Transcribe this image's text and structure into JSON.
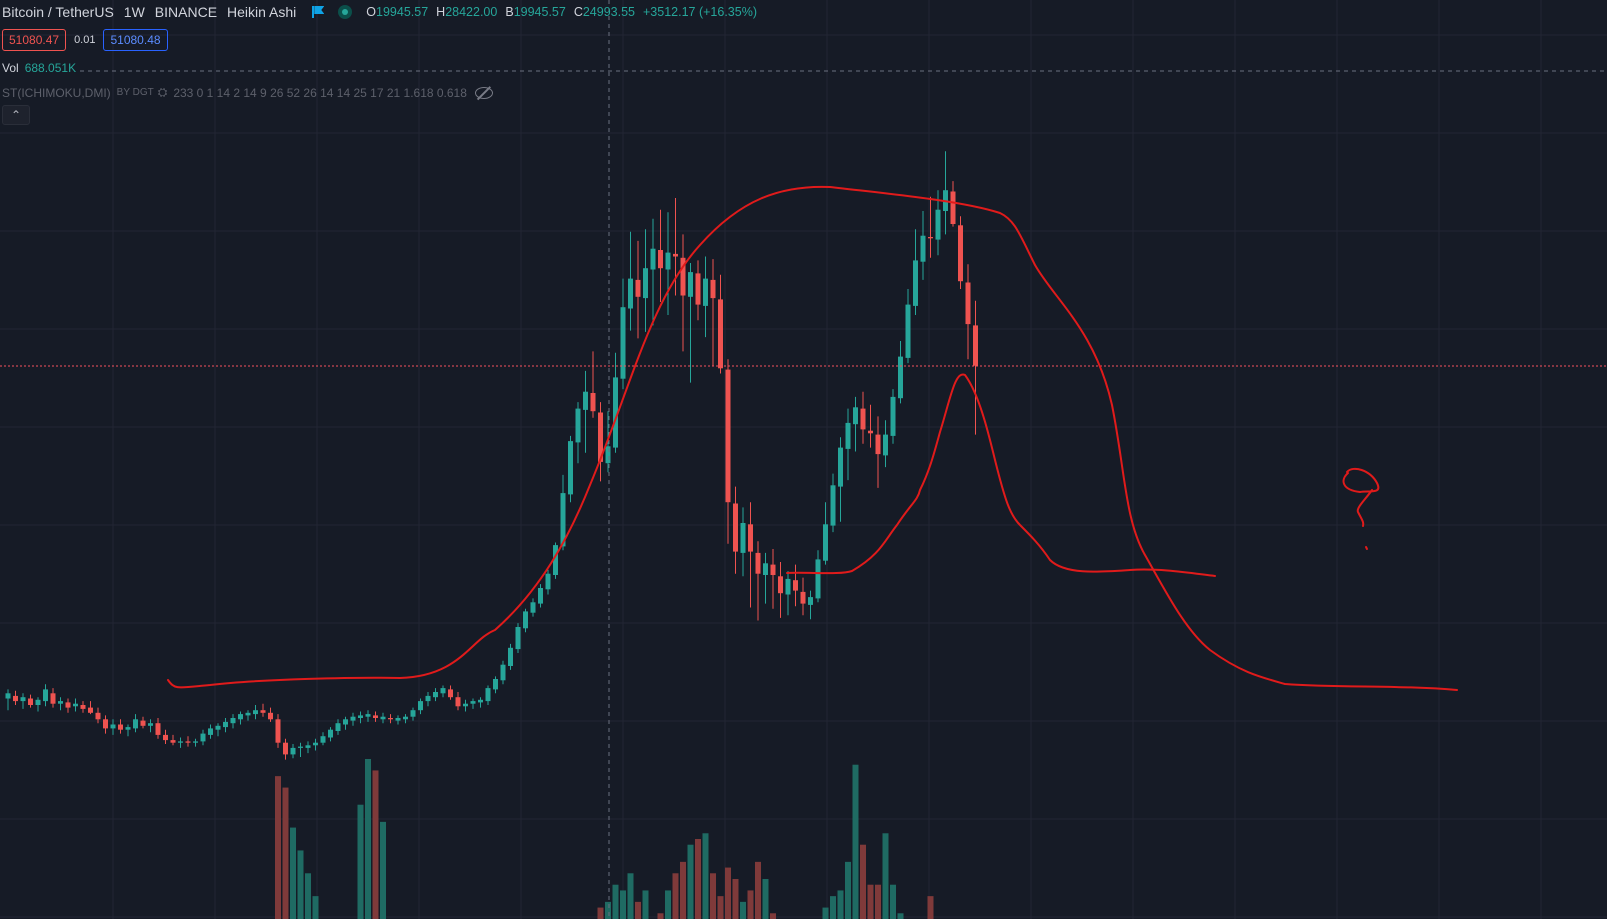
{
  "legend": {
    "symbol": "Bitcoin / TetherUS",
    "interval": "1W",
    "exchange": "BINANCE",
    "chart_style": "Heikin Ashi",
    "open_label": "O",
    "open": "19945.57",
    "high_label": "H",
    "high": "28422.00",
    "low_label": "B",
    "low": "19945.57",
    "close_label": "C",
    "close": "24993.55",
    "change": "+3512.17 (+16.35%)",
    "sell_price": "51080.47",
    "spread": "0.01",
    "buy_price": "51080.48",
    "volume_label": "Vol",
    "volume_value": "688.051K",
    "indicator_name": "ST(ICHIMOKU,DMI)",
    "indicator_by": "BY DGT",
    "indicator_params": "233 0 1 14 2 14 9 26 52 26 14 14 25 17 21 1.618 0.618",
    "collapse_icon": "chevron-up-icon"
  },
  "colors": {
    "background": "#161b26",
    "grid": "#222634",
    "up": "#26a69a",
    "down": "#ef5350",
    "up_volume": "#1f6b63",
    "down_volume": "#7f3a3a",
    "drawing": "#e01b1b",
    "price_line": "#f7525f"
  },
  "chart_data": {
    "type": "candlestick",
    "series_style": "Heikin Ashi",
    "ylim": [
      10000,
      70000
    ],
    "current_price": 51080.47,
    "candles": [
      {
        "o": 25500,
        "h": 26200,
        "l": 24600,
        "c": 25900
      },
      {
        "o": 25700,
        "h": 26100,
        "l": 25000,
        "c": 25300
      },
      {
        "o": 25300,
        "h": 25900,
        "l": 24700,
        "c": 25600
      },
      {
        "o": 25500,
        "h": 25800,
        "l": 24800,
        "c": 25000
      },
      {
        "o": 25000,
        "h": 25600,
        "l": 24500,
        "c": 25400
      },
      {
        "o": 25300,
        "h": 26600,
        "l": 24900,
        "c": 26200
      },
      {
        "o": 25900,
        "h": 26300,
        "l": 24800,
        "c": 25100
      },
      {
        "o": 25100,
        "h": 25600,
        "l": 24600,
        "c": 25300
      },
      {
        "o": 25200,
        "h": 25500,
        "l": 24400,
        "c": 24800
      },
      {
        "o": 24900,
        "h": 25500,
        "l": 24500,
        "c": 25100
      },
      {
        "o": 25000,
        "h": 25300,
        "l": 24400,
        "c": 24700
      },
      {
        "o": 24800,
        "h": 25300,
        "l": 24300,
        "c": 24400
      },
      {
        "o": 24400,
        "h": 24800,
        "l": 23600,
        "c": 23900
      },
      {
        "o": 23900,
        "h": 24200,
        "l": 22800,
        "c": 23200
      },
      {
        "o": 23200,
        "h": 23900,
        "l": 22700,
        "c": 23500
      },
      {
        "o": 23500,
        "h": 23900,
        "l": 22800,
        "c": 23100
      },
      {
        "o": 23100,
        "h": 23500,
        "l": 22600,
        "c": 23300
      },
      {
        "o": 23200,
        "h": 24300,
        "l": 22900,
        "c": 23900
      },
      {
        "o": 23800,
        "h": 24100,
        "l": 23200,
        "c": 23400
      },
      {
        "o": 23400,
        "h": 23900,
        "l": 22900,
        "c": 23600
      },
      {
        "o": 23600,
        "h": 24000,
        "l": 22400,
        "c": 22700
      },
      {
        "o": 22700,
        "h": 23100,
        "l": 22000,
        "c": 22300
      },
      {
        "o": 22300,
        "h": 22700,
        "l": 21900,
        "c": 22100
      },
      {
        "o": 22100,
        "h": 22500,
        "l": 21700,
        "c": 22200
      },
      {
        "o": 22200,
        "h": 22600,
        "l": 21800,
        "c": 22100
      },
      {
        "o": 22100,
        "h": 22400,
        "l": 21800,
        "c": 22200
      },
      {
        "o": 22200,
        "h": 23100,
        "l": 21900,
        "c": 22800
      },
      {
        "o": 22700,
        "h": 23500,
        "l": 22400,
        "c": 23200
      },
      {
        "o": 23100,
        "h": 23600,
        "l": 22600,
        "c": 23400
      },
      {
        "o": 23300,
        "h": 24000,
        "l": 22900,
        "c": 23700
      },
      {
        "o": 23600,
        "h": 24300,
        "l": 23200,
        "c": 24000
      },
      {
        "o": 23900,
        "h": 24500,
        "l": 23500,
        "c": 24300
      },
      {
        "o": 24200,
        "h": 24600,
        "l": 23800,
        "c": 24400
      },
      {
        "o": 24300,
        "h": 25000,
        "l": 23900,
        "c": 24600
      },
      {
        "o": 24600,
        "h": 25100,
        "l": 24100,
        "c": 24400
      },
      {
        "o": 24400,
        "h": 24800,
        "l": 23700,
        "c": 23900
      },
      {
        "o": 23900,
        "h": 24300,
        "l": 21700,
        "c": 22100
      },
      {
        "o": 22100,
        "h": 22400,
        "l": 20800,
        "c": 21200
      },
      {
        "o": 21200,
        "h": 22000,
        "l": 20900,
        "c": 21700
      },
      {
        "o": 21700,
        "h": 22100,
        "l": 21000,
        "c": 21800
      },
      {
        "o": 21700,
        "h": 22200,
        "l": 21300,
        "c": 21900
      },
      {
        "o": 21900,
        "h": 22400,
        "l": 21500,
        "c": 22100
      },
      {
        "o": 22100,
        "h": 22900,
        "l": 21900,
        "c": 22600
      },
      {
        "o": 22500,
        "h": 23300,
        "l": 22200,
        "c": 23100
      },
      {
        "o": 23000,
        "h": 23900,
        "l": 22700,
        "c": 23600
      },
      {
        "o": 23500,
        "h": 24100,
        "l": 23100,
        "c": 23900
      },
      {
        "o": 23800,
        "h": 24400,
        "l": 23400,
        "c": 24100
      },
      {
        "o": 24000,
        "h": 24500,
        "l": 23600,
        "c": 24200
      },
      {
        "o": 24100,
        "h": 24600,
        "l": 23700,
        "c": 24300
      },
      {
        "o": 24200,
        "h": 24500,
        "l": 23700,
        "c": 24000
      },
      {
        "o": 23900,
        "h": 24400,
        "l": 23600,
        "c": 24100
      },
      {
        "o": 24000,
        "h": 24300,
        "l": 23600,
        "c": 23900
      },
      {
        "o": 23800,
        "h": 24200,
        "l": 23500,
        "c": 24000
      },
      {
        "o": 23900,
        "h": 24300,
        "l": 23600,
        "c": 24100
      },
      {
        "o": 24100,
        "h": 24800,
        "l": 23800,
        "c": 24600
      },
      {
        "o": 24600,
        "h": 25500,
        "l": 24300,
        "c": 25300
      },
      {
        "o": 25300,
        "h": 26000,
        "l": 24900,
        "c": 25700
      },
      {
        "o": 25600,
        "h": 26300,
        "l": 25300,
        "c": 26000
      },
      {
        "o": 25900,
        "h": 26500,
        "l": 25600,
        "c": 26300
      },
      {
        "o": 26200,
        "h": 26500,
        "l": 25400,
        "c": 25600
      },
      {
        "o": 25600,
        "h": 26000,
        "l": 24600,
        "c": 24900
      },
      {
        "o": 24900,
        "h": 25400,
        "l": 24500,
        "c": 25100
      },
      {
        "o": 25100,
        "h": 25500,
        "l": 24700,
        "c": 25300
      },
      {
        "o": 25200,
        "h": 25600,
        "l": 24800,
        "c": 25400
      },
      {
        "o": 25300,
        "h": 26500,
        "l": 25000,
        "c": 26300
      },
      {
        "o": 26200,
        "h": 27200,
        "l": 25900,
        "c": 27000
      },
      {
        "o": 26900,
        "h": 28400,
        "l": 26600,
        "c": 28100
      },
      {
        "o": 28000,
        "h": 29700,
        "l": 27700,
        "c": 29400
      },
      {
        "o": 29300,
        "h": 31300,
        "l": 29000,
        "c": 31000
      },
      {
        "o": 30900,
        "h": 32400,
        "l": 30600,
        "c": 32200
      },
      {
        "o": 32100,
        "h": 33200,
        "l": 31800,
        "c": 32900
      },
      {
        "o": 32800,
        "h": 34300,
        "l": 32500,
        "c": 34000
      },
      {
        "o": 33900,
        "h": 35400,
        "l": 33500,
        "c": 35100
      },
      {
        "o": 35000,
        "h": 37500,
        "l": 34700,
        "c": 37300
      },
      {
        "o": 37200,
        "h": 42700,
        "l": 36900,
        "c": 41300
      },
      {
        "o": 41200,
        "h": 45700,
        "l": 40600,
        "c": 45300
      },
      {
        "o": 45200,
        "h": 48300,
        "l": 43600,
        "c": 47800
      },
      {
        "o": 47700,
        "h": 50700,
        "l": 44400,
        "c": 49100
      },
      {
        "o": 49000,
        "h": 52200,
        "l": 47100,
        "c": 47600
      },
      {
        "o": 47500,
        "h": 48300,
        "l": 42200,
        "c": 43700
      },
      {
        "o": 43600,
        "h": 47600,
        "l": 42900,
        "c": 44900
      },
      {
        "o": 44800,
        "h": 52100,
        "l": 44400,
        "c": 50200
      },
      {
        "o": 50100,
        "h": 57800,
        "l": 49300,
        "c": 55600
      },
      {
        "o": 55500,
        "h": 61400,
        "l": 53800,
        "c": 57800
      },
      {
        "o": 57700,
        "h": 60700,
        "l": 53200,
        "c": 56400
      },
      {
        "o": 56300,
        "h": 61600,
        "l": 53700,
        "c": 58600
      },
      {
        "o": 58500,
        "h": 62400,
        "l": 54200,
        "c": 60100
      },
      {
        "o": 60000,
        "h": 63100,
        "l": 56000,
        "c": 58600
      },
      {
        "o": 58500,
        "h": 62900,
        "l": 55000,
        "c": 59800
      },
      {
        "o": 59700,
        "h": 64000,
        "l": 56500,
        "c": 59500
      },
      {
        "o": 59400,
        "h": 61200,
        "l": 52200,
        "c": 56500
      },
      {
        "o": 56400,
        "h": 59000,
        "l": 49800,
        "c": 58300
      },
      {
        "o": 58200,
        "h": 59200,
        "l": 54600,
        "c": 55800
      },
      {
        "o": 55700,
        "h": 59500,
        "l": 53300,
        "c": 57800
      },
      {
        "o": 57700,
        "h": 59300,
        "l": 51100,
        "c": 56300
      },
      {
        "o": 56200,
        "h": 58100,
        "l": 50500,
        "c": 50900
      },
      {
        "o": 50800,
        "h": 51600,
        "l": 37400,
        "c": 40600
      },
      {
        "o": 40500,
        "h": 41800,
        "l": 35100,
        "c": 36800
      },
      {
        "o": 36700,
        "h": 40200,
        "l": 34900,
        "c": 39000
      },
      {
        "o": 38900,
        "h": 40600,
        "l": 32500,
        "c": 36800
      },
      {
        "o": 36700,
        "h": 37600,
        "l": 31500,
        "c": 35100
      },
      {
        "o": 35000,
        "h": 36700,
        "l": 32800,
        "c": 35900
      },
      {
        "o": 35800,
        "h": 37000,
        "l": 32400,
        "c": 35000
      },
      {
        "o": 34900,
        "h": 36000,
        "l": 31700,
        "c": 33600
      },
      {
        "o": 33500,
        "h": 35300,
        "l": 31900,
        "c": 34700
      },
      {
        "o": 34600,
        "h": 35800,
        "l": 32600,
        "c": 33800
      },
      {
        "o": 33700,
        "h": 34800,
        "l": 31900,
        "c": 32800
      },
      {
        "o": 32700,
        "h": 33800,
        "l": 31600,
        "c": 33300
      },
      {
        "o": 33200,
        "h": 36900,
        "l": 32900,
        "c": 36200
      },
      {
        "o": 36100,
        "h": 40600,
        "l": 35800,
        "c": 38900
      },
      {
        "o": 38800,
        "h": 42800,
        "l": 38300,
        "c": 41900
      },
      {
        "o": 41800,
        "h": 45600,
        "l": 39100,
        "c": 44800
      },
      {
        "o": 44700,
        "h": 47800,
        "l": 42300,
        "c": 46700
      },
      {
        "o": 46600,
        "h": 48700,
        "l": 44500,
        "c": 47900
      },
      {
        "o": 47800,
        "h": 49100,
        "l": 45100,
        "c": 46200
      },
      {
        "o": 46100,
        "h": 48100,
        "l": 44800,
        "c": 45900
      },
      {
        "o": 45800,
        "h": 47200,
        "l": 41700,
        "c": 44300
      },
      {
        "o": 44200,
        "h": 46900,
        "l": 43300,
        "c": 45800
      },
      {
        "o": 45700,
        "h": 49300,
        "l": 45100,
        "c": 48700
      },
      {
        "o": 48600,
        "h": 53000,
        "l": 48200,
        "c": 51800
      },
      {
        "o": 51700,
        "h": 57000,
        "l": 51300,
        "c": 55800
      },
      {
        "o": 55700,
        "h": 61600,
        "l": 55000,
        "c": 59200
      },
      {
        "o": 59100,
        "h": 63000,
        "l": 57700,
        "c": 61100
      },
      {
        "o": 61000,
        "h": 64100,
        "l": 59400,
        "c": 60900
      },
      {
        "o": 60800,
        "h": 64600,
        "l": 59600,
        "c": 63100
      },
      {
        "o": 63000,
        "h": 67600,
        "l": 61200,
        "c": 64600
      },
      {
        "o": 64500,
        "h": 65300,
        "l": 61800,
        "c": 62000
      },
      {
        "o": 61900,
        "h": 62600,
        "l": 57000,
        "c": 57600
      },
      {
        "o": 57500,
        "h": 58900,
        "l": 51600,
        "c": 54300
      },
      {
        "o": 54200,
        "h": 56100,
        "l": 45800,
        "c": 51100
      }
    ],
    "volumes": [
      0,
      0,
      0,
      0,
      0,
      0,
      0,
      0,
      0,
      0,
      0,
      0,
      0,
      0,
      0,
      0,
      0,
      0,
      0,
      0,
      0,
      0,
      0,
      0,
      0,
      0,
      0,
      0,
      0,
      0,
      0,
      0,
      0,
      0,
      0,
      0,
      2.5,
      2.3,
      1.6,
      1.2,
      0.8,
      0.4,
      0,
      0,
      0,
      0,
      0,
      2.0,
      2.8,
      2.6,
      1.7,
      0,
      0,
      0,
      0,
      0,
      0,
      0,
      0,
      0,
      0,
      0,
      0,
      0,
      0,
      0,
      0,
      0,
      0,
      0,
      0,
      0,
      0,
      0,
      0,
      0,
      0,
      0,
      0,
      0.2,
      0.3,
      0.6,
      0.5,
      0.8,
      0.3,
      0.5,
      0,
      0.1,
      0.5,
      0.8,
      1.0,
      1.3,
      1.4,
      1.5,
      0.8,
      0.4,
      0.9,
      0.7,
      0.3,
      0.5,
      1.0,
      0.7,
      0.1,
      0,
      0,
      0,
      0,
      0,
      0,
      0.2,
      0.4,
      0.5,
      1.0,
      2.7,
      1.3,
      0.6,
      0.6,
      1.5,
      0.6,
      0.1,
      0,
      0,
      0,
      0.4,
      0,
      0,
      0,
      0,
      0,
      0,
      0,
      0,
      0,
      0,
      0,
      0,
      0,
      0
    ],
    "volume_colors_by_direction": true,
    "drawing_paths": [
      "M168 680 C175 690 178 688 210 685 C260 679 360 677 400 678 C460 676 470 640 495 630 C540 590 568 540 590 485 C630 390 650 300 700 245 C740 200 780 185 830 187 C880 193 960 200 1000 213 C1015 220 1020 235 1035 265 C1055 300 1095 330 1112 405 C1125 470 1125 520 1145 555 C1165 590 1185 630 1210 650 C1240 672 1260 677 1285 684 C1340 688 1400 685 1457 690",
      "M787 573 C810 572 840 575 852 571 C880 555 885 540 897 525 C910 505 918 500 920 490 C930 470 935 450 940 432 C950 400 955 370 965 375 C980 395 990 440 995 460 C1005 500 1010 515 1020 525 C1030 535 1040 545 1050 560 C1065 575 1100 572 1130 570 C1160 568 1190 573 1215 576",
      "M1347 472 C1353 465 1370 470 1377 483 C1383 495 1368 490 1360 492 C1342 490 1340 480 1348 473 M1372 490 C1365 500 1356 508 1358 512 C1362 520 1364 522 1363 526",
      "M1366 547 L1367 549"
    ]
  }
}
